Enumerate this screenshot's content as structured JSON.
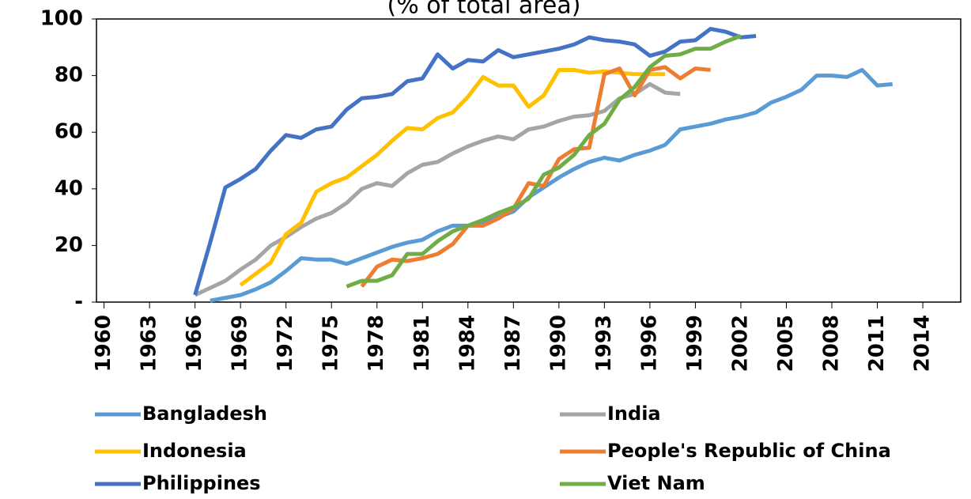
{
  "chart_data": {
    "type": "line",
    "title": "(% of total area)",
    "xlim": [
      1959.5,
      2016.5
    ],
    "xticks": [
      1960,
      1963,
      1966,
      1969,
      1972,
      1975,
      1978,
      1981,
      1984,
      1987,
      1990,
      1993,
      1996,
      1999,
      2002,
      2005,
      2008,
      2011,
      2014
    ],
    "ylim": [
      0,
      100
    ],
    "yticks": [
      {
        "value": 0,
        "label": "-"
      },
      20,
      40,
      60,
      80,
      100
    ],
    "series": [
      {
        "name": "Bangladesh",
        "color": "#5b9bd5",
        "x": [
          1967,
          1968,
          1969,
          1970,
          1971,
          1972,
          1973,
          1974,
          1975,
          1976,
          1977,
          1978,
          1979,
          1980,
          1981,
          1982,
          1983,
          1984,
          1985,
          1986,
          1987,
          1988,
          1989,
          1990,
          1991,
          1992,
          1993,
          1994,
          1995,
          1996,
          1997,
          1998,
          1999,
          2000,
          2001,
          2002,
          2003,
          2004,
          2005,
          2006,
          2007,
          2008,
          2009,
          2010,
          2011,
          2012
        ],
        "values": [
          0.5,
          1.5,
          2.5,
          4.5,
          7,
          11,
          15.5,
          15,
          15,
          13.5,
          15.5,
          17.5,
          19.5,
          21,
          22,
          25,
          27,
          27,
          28,
          30,
          32,
          37,
          40.5,
          44,
          47,
          49.5,
          51,
          50,
          52,
          53.5,
          55.5,
          61,
          62,
          63,
          64.5,
          65.5,
          67,
          70.5,
          72.5,
          75,
          80,
          80,
          79.5,
          82,
          76.5,
          77
        ]
      },
      {
        "name": "India",
        "color": "#a5a5a5",
        "x": [
          1966,
          1967,
          1968,
          1969,
          1970,
          1971,
          1972,
          1973,
          1974,
          1975,
          1976,
          1977,
          1978,
          1979,
          1980,
          1981,
          1982,
          1983,
          1984,
          1985,
          1986,
          1987,
          1988,
          1989,
          1990,
          1991,
          1992,
          1993,
          1994,
          1995,
          1996,
          1997,
          1998
        ],
        "values": [
          2.5,
          5,
          7.5,
          11.5,
          15,
          20,
          23,
          26.5,
          29.5,
          31.5,
          35,
          40,
          42,
          41,
          45.5,
          48.5,
          49.5,
          52.5,
          55,
          57,
          58.5,
          57.5,
          61,
          62,
          64,
          65.5,
          66,
          67.5,
          72,
          73.5,
          77,
          74,
          73.5
        ]
      },
      {
        "name": "Indonesia",
        "color": "#ffc000",
        "x": [
          1969,
          1970,
          1971,
          1972,
          1973,
          1974,
          1975,
          1976,
          1977,
          1978,
          1979,
          1980,
          1981,
          1982,
          1983,
          1984,
          1985,
          1986,
          1987,
          1988,
          1989,
          1990,
          1991,
          1992,
          1993,
          1994,
          1995,
          1996,
          1997
        ],
        "values": [
          6,
          10,
          14,
          24,
          28,
          39,
          42,
          44,
          48,
          52,
          57,
          61.5,
          61,
          65,
          67,
          72.5,
          79.5,
          76.5,
          76.5,
          69,
          73,
          82,
          82,
          81,
          81.5,
          81,
          80.5,
          80.5,
          80.5
        ]
      },
      {
        "name": "People's Republic of China",
        "color": "#ed7d31",
        "x": [
          1977,
          1978,
          1979,
          1980,
          1981,
          1982,
          1983,
          1984,
          1985,
          1986,
          1987,
          1988,
          1989,
          1990,
          1991,
          1992,
          1993,
          1994,
          1995,
          1996,
          1997,
          1998,
          1999,
          2000
        ],
        "values": [
          5.5,
          12.5,
          15,
          14.5,
          15.5,
          17,
          20.5,
          27,
          27,
          29.5,
          33,
          42,
          41,
          50.5,
          54,
          54.5,
          80.5,
          82.5,
          73,
          82,
          83,
          79,
          82.5,
          82
        ]
      },
      {
        "name": "Philippines",
        "color": "#4472c4",
        "x": [
          1966,
          1967,
          1968,
          1969,
          1970,
          1971,
          1972,
          1973,
          1974,
          1975,
          1976,
          1977,
          1978,
          1979,
          1980,
          1981,
          1982,
          1983,
          1984,
          1985,
          1986,
          1987,
          1988,
          1989,
          1990,
          1991,
          1992,
          1993,
          1994,
          1995,
          1996,
          1997,
          1998,
          1999,
          2000,
          2001,
          2002,
          2003
        ],
        "values": [
          2.5,
          21,
          40.5,
          43.5,
          47,
          53.5,
          59,
          58,
          61,
          62,
          68,
          72,
          72.5,
          73.5,
          78,
          79,
          87.5,
          82.5,
          85.5,
          85,
          89,
          86.5,
          87.5,
          88.5,
          89.5,
          91,
          93.5,
          92.5,
          92,
          91,
          87,
          88.5,
          92,
          92.5,
          96.5,
          95.5,
          93.5,
          94
        ]
      },
      {
        "name": "Viet Nam",
        "color": "#70ad47",
        "x": [
          1976,
          1977,
          1978,
          1979,
          1980,
          1981,
          1982,
          1983,
          1984,
          1985,
          1986,
          1987,
          1988,
          1989,
          1990,
          1991,
          1992,
          1993,
          1994,
          1995,
          1996,
          1997,
          1998,
          1999,
          2000,
          2001,
          2002
        ],
        "values": [
          5.5,
          7.5,
          7.5,
          9.5,
          17,
          17,
          21.5,
          25,
          27,
          29,
          31.5,
          33.5,
          36.5,
          45,
          47.5,
          52,
          59,
          63,
          71.5,
          76,
          83,
          87,
          87.5,
          89.5,
          89.5,
          92,
          94
        ]
      }
    ]
  }
}
